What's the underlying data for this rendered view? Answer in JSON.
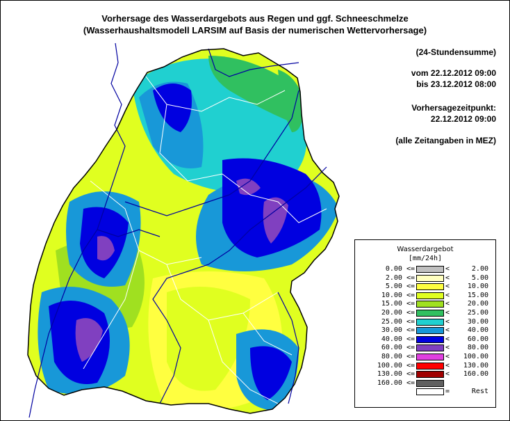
{
  "title": {
    "line1": "Vorhersage des Wasserdargebots aus Regen und ggf. Schneeschmelze",
    "line2": "(Wasserhaushaltsmodell LARSIM auf Basis der numerischen Wettervorhersage)"
  },
  "info": {
    "sum": "(24-Stundensumme)",
    "from": "vom 22.12.2012 09:00",
    "to": "bis 23.12.2012 08:00",
    "forecast_label": "Vorhersagezeitpunkt:",
    "forecast_time": "22.12.2012 09:00",
    "tz_note": "(alle Zeitangaben in MEZ)"
  },
  "legend": {
    "title": "Wasserdargebot",
    "unit": "[mm/24h]",
    "rows": [
      {
        "lo": "0.00 <=",
        "op": "<",
        "hi": "2.00",
        "color": "#c0c0c0"
      },
      {
        "lo": "2.00 <=",
        "op": "<",
        "hi": "5.00",
        "color": "#ffffc0"
      },
      {
        "lo": "5.00 <=",
        "op": "<",
        "hi": "10.00",
        "color": "#ffff40"
      },
      {
        "lo": "10.00 <=",
        "op": "<",
        "hi": "15.00",
        "color": "#e0ff20"
      },
      {
        "lo": "15.00 <=",
        "op": "<",
        "hi": "20.00",
        "color": "#a0e020"
      },
      {
        "lo": "20.00 <=",
        "op": "<",
        "hi": "25.00",
        "color": "#30c060"
      },
      {
        "lo": "25.00 <=",
        "op": "<",
        "hi": "30.00",
        "color": "#20d0d0"
      },
      {
        "lo": "30.00 <=",
        "op": "<",
        "hi": "40.00",
        "color": "#1898d8"
      },
      {
        "lo": "40.00 <=",
        "op": "<",
        "hi": "60.00",
        "color": "#0000e0"
      },
      {
        "lo": "60.00 <=",
        "op": "<",
        "hi": "80.00",
        "color": "#8040c0"
      },
      {
        "lo": "80.00 <=",
        "op": "<",
        "hi": "100.00",
        "color": "#e040e0"
      },
      {
        "lo": "100.00 <=",
        "op": "<",
        "hi": "130.00",
        "color": "#ff0000"
      },
      {
        "lo": "130.00 <=",
        "op": "<",
        "hi": "160.00",
        "color": "#a00000"
      },
      {
        "lo": "160.00 <=",
        "op": "",
        "hi": "",
        "color": "#606060"
      },
      {
        "lo": "",
        "op": "=",
        "hi": "Rest",
        "color": "#ffffff"
      }
    ]
  },
  "map_colors": {
    "yellow_light": "#ffff40",
    "yellow_green": "#e0ff20",
    "green": "#a0e020",
    "dark_green": "#30c060",
    "cyan": "#20d0d0",
    "sky_blue": "#1898d8",
    "blue": "#0000e0",
    "purple": "#8040c0",
    "river": "#0000a0",
    "border": "#000000",
    "catchment": "#ffffff"
  }
}
